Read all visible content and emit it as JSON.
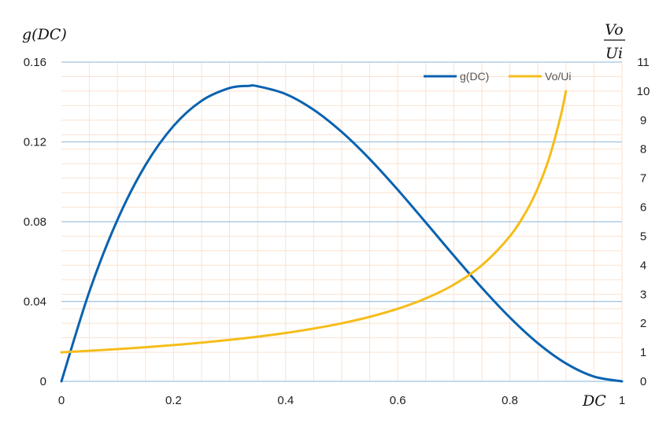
{
  "chart_data": {
    "type": "line",
    "x_title": "DC",
    "y_title_left": "g(DC)",
    "y_title_right_numerator": "Vo",
    "y_title_right_denominator": "Ui",
    "xlim": [
      0,
      1
    ],
    "ylim_left": [
      0,
      0.16
    ],
    "ylim_right": [
      0,
      11
    ],
    "x_ticks": [
      "0",
      "0.2",
      "0.4",
      "0.6",
      "0.8",
      "1"
    ],
    "y_ticks_left": [
      "0",
      "0.04",
      "0.08",
      "0.12",
      "0.16"
    ],
    "y_ticks_right": [
      "0",
      "1",
      "2",
      "3",
      "4",
      "5",
      "6",
      "7",
      "8",
      "9",
      "10",
      "11"
    ],
    "grid": true,
    "legend_position": "top-right",
    "series": [
      {
        "name": "g(DC)",
        "axis": "left",
        "color": "#0a62b0",
        "x": [
          0,
          0.05,
          0.1,
          0.15,
          0.2,
          0.25,
          0.3,
          0.333,
          0.35,
          0.4,
          0.45,
          0.5,
          0.55,
          0.6,
          0.65,
          0.7,
          0.75,
          0.8,
          0.85,
          0.9,
          0.95,
          1.0
        ],
        "y": [
          0,
          0.0451,
          0.081,
          0.1084,
          0.128,
          0.1406,
          0.147,
          0.1481,
          0.1479,
          0.144,
          0.1361,
          0.125,
          0.1114,
          0.096,
          0.0796,
          0.063,
          0.0469,
          0.032,
          0.0191,
          0.009,
          0.0024,
          0
        ]
      },
      {
        "name": "Vo/Ui",
        "axis": "right",
        "color": "#f5bd1a",
        "x": [
          0,
          0.05,
          0.1,
          0.15,
          0.2,
          0.25,
          0.3,
          0.35,
          0.4,
          0.45,
          0.5,
          0.55,
          0.6,
          0.65,
          0.7,
          0.75,
          0.8,
          0.83,
          0.85,
          0.87,
          0.89,
          0.9
        ],
        "y": [
          1.0,
          1.053,
          1.111,
          1.176,
          1.25,
          1.333,
          1.429,
          1.538,
          1.667,
          1.818,
          2.0,
          2.222,
          2.5,
          2.857,
          3.333,
          4.0,
          5.0,
          5.882,
          6.667,
          7.692,
          9.091,
          10.0
        ]
      }
    ]
  }
}
